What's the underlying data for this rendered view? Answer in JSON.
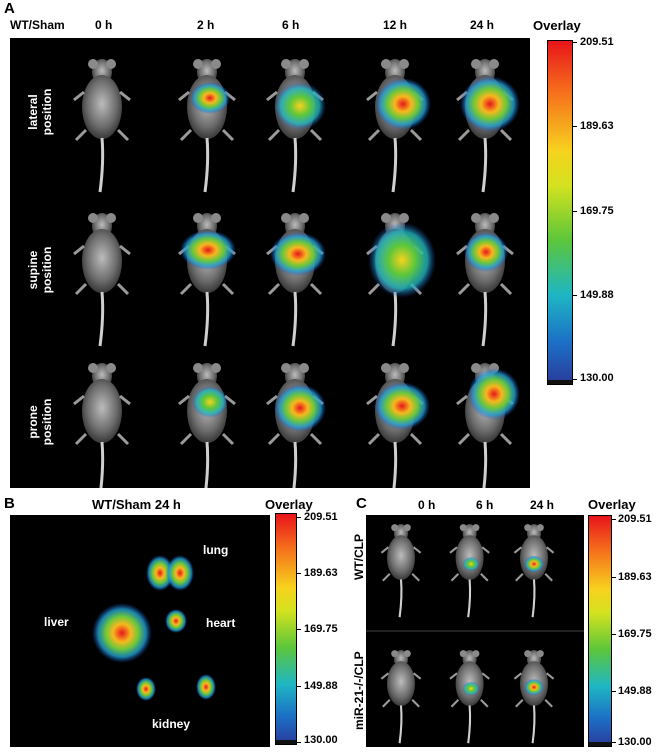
{
  "panelA": {
    "label": "A",
    "group": "WT/Sham",
    "times": [
      "0 h",
      "2 h",
      "6 h",
      "12 h",
      "24 h"
    ],
    "rows": [
      "lateral\nposition",
      "supine\nposition",
      "prone\nposition"
    ],
    "overlay": "Overlay",
    "scale": [
      "209.51",
      "189.63",
      "169.75",
      "149.88",
      "130.00"
    ]
  },
  "panelB": {
    "label": "B",
    "title": "WT/Sham 24 h",
    "overlay": "Overlay",
    "organs": {
      "lung": "lung",
      "liver": "liver",
      "heart": "heart",
      "kidney": "kidney"
    },
    "scale": [
      "209.51",
      "189.63",
      "169.75",
      "149.88",
      "130.00"
    ]
  },
  "panelC": {
    "label": "C",
    "times": [
      "0 h",
      "6 h",
      "24 h"
    ],
    "rows": [
      "WT/CLP",
      "miR-21-/-/CLP"
    ],
    "overlay": "Overlay",
    "scale": [
      "209.51",
      "189.63",
      "169.75",
      "149.88",
      "130.00"
    ]
  }
}
